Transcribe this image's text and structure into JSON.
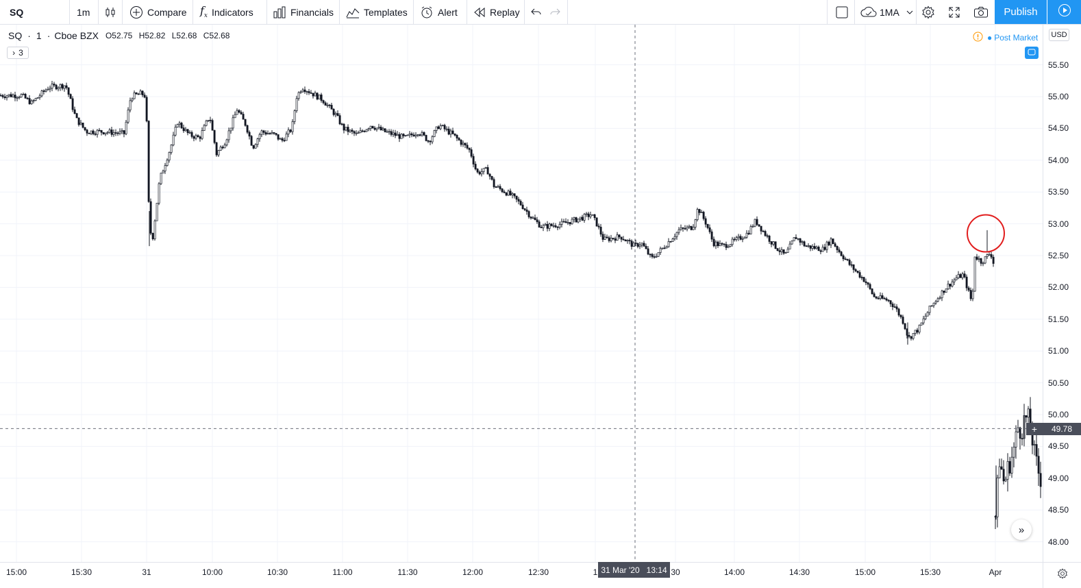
{
  "toolbar": {
    "symbol": "SQ",
    "interval": "1m",
    "compare_label": "Compare",
    "indicators_label": "Indicators",
    "financials_label": "Financials",
    "templates_label": "Templates",
    "alert_label": "Alert",
    "replay_label": "Replay",
    "indicator_template": "1MA",
    "publish_label": "Publish"
  },
  "legend": {
    "symbol": "SQ",
    "interval": "1",
    "exchange": "Cboe BZX",
    "open": "O52.75",
    "high": "H52.82",
    "low": "L52.68",
    "close": "C52.68",
    "collapse_label": "3"
  },
  "session": {
    "label": "Post Market"
  },
  "price_axis": {
    "currency": "USD",
    "ticks": [
      "55.50",
      "55.00",
      "54.50",
      "54.00",
      "53.50",
      "53.00",
      "52.50",
      "52.00",
      "51.50",
      "51.00",
      "50.50",
      "50.00",
      "49.50",
      "49.00",
      "48.50",
      "48.00"
    ],
    "crosshair_price": "49.78"
  },
  "time_axis": {
    "labels": [
      "15:00",
      "15:30",
      "31",
      "10:00",
      "10:30",
      "11:00",
      "11:30",
      "12:00",
      "12:30",
      "1",
      "30",
      "14:00",
      "14:30",
      "15:00",
      "15:30",
      "Apr"
    ],
    "crosshair_date": "31 Mar '20",
    "crosshair_time": "13:14"
  },
  "colors": {
    "accent": "#2196f3",
    "candle": "#131722",
    "annotation": "#e11d1d",
    "grid": "#f0f3fa"
  },
  "chart_data": {
    "type": "candlestick",
    "ylim": [
      47.7,
      55.95
    ],
    "price_path": [
      [
        0,
        55.02
      ],
      [
        30,
        55.02
      ],
      [
        45,
        54.9
      ],
      [
        70,
        55.15
      ],
      [
        95,
        55.18
      ],
      [
        110,
        54.65
      ],
      [
        125,
        54.45
      ],
      [
        150,
        54.45
      ],
      [
        180,
        54.42
      ],
      [
        190,
        55.0
      ],
      [
        205,
        55.05
      ],
      [
        212,
        55.0
      ],
      [
        217,
        52.9
      ],
      [
        222,
        52.8
      ],
      [
        232,
        53.7
      ],
      [
        248,
        54.2
      ],
      [
        258,
        54.6
      ],
      [
        275,
        54.4
      ],
      [
        290,
        54.35
      ],
      [
        305,
        54.7
      ],
      [
        315,
        54.1
      ],
      [
        328,
        54.3
      ],
      [
        345,
        54.8
      ],
      [
        358,
        54.55
      ],
      [
        368,
        54.2
      ],
      [
        380,
        54.45
      ],
      [
        400,
        54.4
      ],
      [
        410,
        54.3
      ],
      [
        425,
        54.5
      ],
      [
        432,
        55.0
      ],
      [
        440,
        55.15
      ],
      [
        455,
        55.05
      ],
      [
        470,
        54.95
      ],
      [
        490,
        54.7
      ],
      [
        500,
        54.5
      ],
      [
        520,
        54.4
      ],
      [
        540,
        54.55
      ],
      [
        560,
        54.45
      ],
      [
        590,
        54.35
      ],
      [
        610,
        54.45
      ],
      [
        625,
        54.3
      ],
      [
        640,
        54.55
      ],
      [
        660,
        54.4
      ],
      [
        685,
        54.15
      ],
      [
        695,
        53.8
      ],
      [
        710,
        53.85
      ],
      [
        720,
        53.6
      ],
      [
        745,
        53.45
      ],
      [
        760,
        53.3
      ],
      [
        775,
        53.1
      ],
      [
        790,
        52.95
      ],
      [
        820,
        53.0
      ],
      [
        850,
        53.1
      ],
      [
        862,
        53.15
      ],
      [
        870,
        53.0
      ],
      [
        880,
        52.75
      ],
      [
        905,
        52.8
      ],
      [
        925,
        52.65
      ],
      [
        935,
        52.7
      ],
      [
        950,
        52.45
      ],
      [
        965,
        52.6
      ],
      [
        990,
        52.9
      ],
      [
        1010,
        52.95
      ],
      [
        1018,
        53.25
      ],
      [
        1030,
        53.0
      ],
      [
        1040,
        52.7
      ],
      [
        1055,
        52.65
      ],
      [
        1075,
        52.75
      ],
      [
        1090,
        52.85
      ],
      [
        1102,
        53.05
      ],
      [
        1115,
        52.85
      ],
      [
        1130,
        52.65
      ],
      [
        1145,
        52.5
      ],
      [
        1160,
        52.8
      ],
      [
        1175,
        52.65
      ],
      [
        1200,
        52.6
      ],
      [
        1212,
        52.75
      ],
      [
        1225,
        52.55
      ],
      [
        1240,
        52.35
      ],
      [
        1262,
        52.1
      ],
      [
        1275,
        51.85
      ],
      [
        1295,
        51.8
      ],
      [
        1305,
        51.7
      ],
      [
        1318,
        51.45
      ],
      [
        1325,
        51.2
      ],
      [
        1340,
        51.35
      ],
      [
        1355,
        51.65
      ],
      [
        1365,
        51.8
      ],
      [
        1380,
        52.0
      ],
      [
        1395,
        52.15
      ],
      [
        1405,
        52.2
      ],
      [
        1418,
        51.75
      ],
      [
        1422,
        52.5
      ],
      [
        1432,
        52.4
      ],
      [
        1445,
        52.55
      ],
      [
        1450,
        52.35
      ]
    ],
    "post_path": [
      [
        1452,
        48.4
      ],
      [
        1458,
        49.3
      ],
      [
        1465,
        48.9
      ],
      [
        1470,
        49.15
      ],
      [
        1478,
        49.4
      ],
      [
        1485,
        49.8
      ],
      [
        1490,
        49.75
      ],
      [
        1495,
        49.95
      ],
      [
        1502,
        49.9
      ],
      [
        1510,
        49.3
      ],
      [
        1516,
        49.05
      ],
      [
        1520,
        48.95
      ]
    ],
    "spikes": [
      [
        218,
        52.65,
        53.2
      ],
      [
        1325,
        51.1,
        51.45
      ],
      [
        1441,
        52.55,
        52.9
      ],
      [
        1454,
        48.35,
        49.2
      ],
      [
        1495,
        49.5,
        50.0
      ]
    ],
    "highlight": {
      "x": 1439,
      "price": 52.85
    },
    "crosshair": {
      "x": 927,
      "price": 49.78
    }
  }
}
